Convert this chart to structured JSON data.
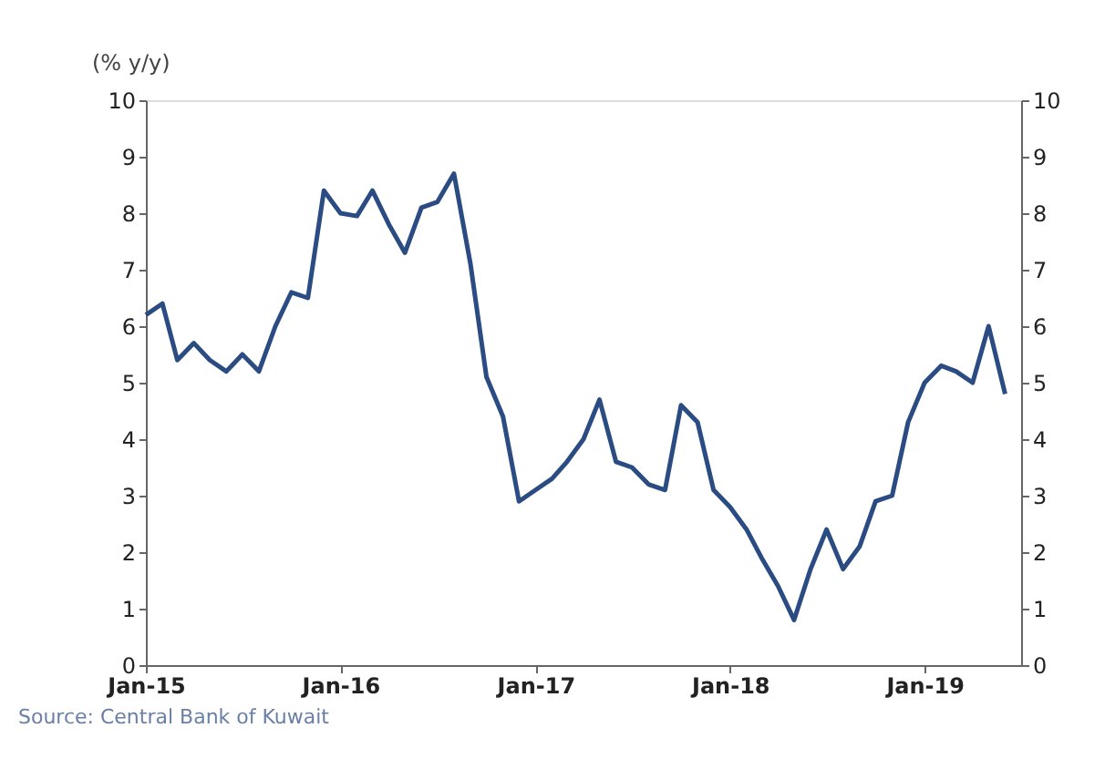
{
  "chart_data": {
    "type": "line",
    "ylabel": "(% y/y)",
    "annotations": [
      "Source: Central Bank of Kuwait"
    ],
    "x": [
      "2015-01",
      "2015-02",
      "2015-03",
      "2015-04",
      "2015-05",
      "2015-06",
      "2015-07",
      "2015-08",
      "2015-09",
      "2015-10",
      "2015-11",
      "2015-12",
      "2016-01",
      "2016-02",
      "2016-03",
      "2016-04",
      "2016-05",
      "2016-06",
      "2016-07",
      "2016-08",
      "2016-09",
      "2016-10",
      "2016-11",
      "2016-12",
      "2017-01",
      "2017-02",
      "2017-03",
      "2017-04",
      "2017-05",
      "2017-06",
      "2017-07",
      "2017-08",
      "2017-09",
      "2017-10",
      "2017-11",
      "2017-12",
      "2018-01",
      "2018-02",
      "2018-03",
      "2018-04",
      "2018-05",
      "2018-06",
      "2018-07",
      "2018-08",
      "2018-09",
      "2018-10",
      "2018-11",
      "2018-12",
      "2019-01",
      "2019-02",
      "2019-03",
      "2019-04",
      "2019-05",
      "2019-06"
    ],
    "series": [
      {
        "color": "#2b4c82",
        "values": [
          6.2,
          6.4,
          5.4,
          5.7,
          5.4,
          5.2,
          5.5,
          5.2,
          6.0,
          6.6,
          6.5,
          8.4,
          8.0,
          7.95,
          8.4,
          7.8,
          7.3,
          8.1,
          8.2,
          8.7,
          7.1,
          5.1,
          4.4,
          2.9,
          3.1,
          3.3,
          3.6,
          4.0,
          4.7,
          3.6,
          3.5,
          3.2,
          3.1,
          4.6,
          4.3,
          3.1,
          2.8,
          2.4,
          1.9,
          1.4,
          0.8,
          1.7,
          2.4,
          1.7,
          2.1,
          2.9,
          3.0,
          4.3,
          5.0,
          5.3,
          5.2,
          5.0,
          6.0,
          4.8
        ]
      }
    ],
    "xlim": [
      "2015-01",
      "2019-07"
    ],
    "xticks": [
      {
        "value": "2015-01",
        "label": "Jan-15"
      },
      {
        "value": "2016-01",
        "label": "Jan-16"
      },
      {
        "value": "2017-01",
        "label": "Jan-17"
      },
      {
        "value": "2018-01",
        "label": "Jan-18"
      },
      {
        "value": "2019-01",
        "label": "Jan-19"
      }
    ],
    "ylim": [
      0,
      10
    ],
    "yticks": [
      0,
      1,
      2,
      3,
      4,
      5,
      6,
      7,
      8,
      9,
      10
    ],
    "y2lim": [
      0,
      10
    ],
    "y2ticks": [
      0,
      1,
      2,
      3,
      4,
      5,
      6,
      7,
      8,
      9,
      10
    ],
    "grid": false,
    "legend": false,
    "line_style": "solid",
    "marker": "none"
  }
}
